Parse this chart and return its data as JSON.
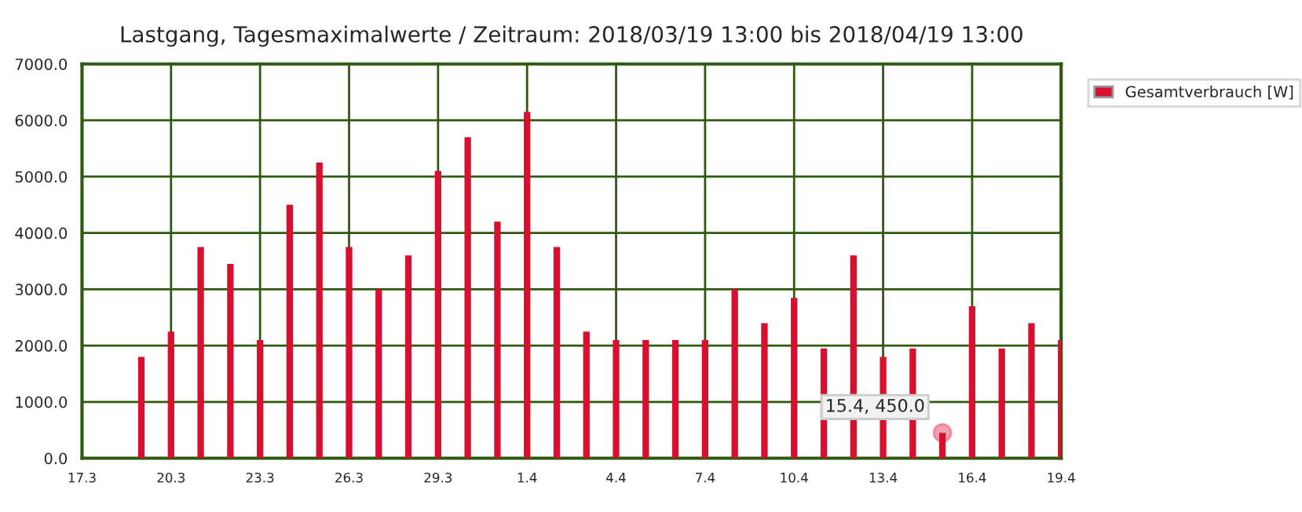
{
  "chart_data": {
    "type": "bar",
    "title": "Lastgang, Tagesmaximalwerte / Zeitraum: 2018/03/19 13:00 bis 2018/04/19 13:00",
    "x": [
      "2018-03-19",
      "2018-03-20",
      "2018-03-21",
      "2018-03-22",
      "2018-03-23",
      "2018-03-24",
      "2018-03-25",
      "2018-03-26",
      "2018-03-27",
      "2018-03-28",
      "2018-03-29",
      "2018-03-30",
      "2018-03-31",
      "2018-04-01",
      "2018-04-02",
      "2018-04-03",
      "2018-04-04",
      "2018-04-05",
      "2018-04-06",
      "2018-04-07",
      "2018-04-08",
      "2018-04-09",
      "2018-04-10",
      "2018-04-11",
      "2018-04-12",
      "2018-04-13",
      "2018-04-14",
      "2018-04-15",
      "2018-04-16",
      "2018-04-17",
      "2018-04-18",
      "2018-04-19"
    ],
    "series": [
      {
        "name": "Gesamtverbrauch [W]",
        "color": "#d7102f",
        "values": [
          1800,
          2250,
          3750,
          3450,
          2100,
          4500,
          5250,
          3750,
          3000,
          3600,
          5100,
          5700,
          4200,
          6150,
          3750,
          2250,
          2100,
          2100,
          2100,
          2100,
          3000,
          2400,
          2850,
          1950,
          3600,
          1800,
          1950,
          450,
          2700,
          1950,
          2400,
          2100
        ]
      }
    ],
    "xlim": [
      "2018-03-17",
      "2018-04-19"
    ],
    "xticks": [
      {
        "value": "2018-03-17",
        "label": "17.3"
      },
      {
        "value": "2018-03-20",
        "label": "20.3"
      },
      {
        "value": "2018-03-23",
        "label": "23.3"
      },
      {
        "value": "2018-03-26",
        "label": "26.3"
      },
      {
        "value": "2018-03-29",
        "label": "29.3"
      },
      {
        "value": "2018-04-01",
        "label": "1.4"
      },
      {
        "value": "2018-04-04",
        "label": "4.4"
      },
      {
        "value": "2018-04-07",
        "label": "7.4"
      },
      {
        "value": "2018-04-10",
        "label": "10.4"
      },
      {
        "value": "2018-04-13",
        "label": "13.4"
      },
      {
        "value": "2018-04-16",
        "label": "16.4"
      },
      {
        "value": "2018-04-19",
        "label": "19.4"
      }
    ],
    "ylim": [
      0,
      7000
    ],
    "yticks": [
      {
        "value": 0,
        "label": "0.0"
      },
      {
        "value": 1000,
        "label": "1000.0"
      },
      {
        "value": 2000,
        "label": "2000.0"
      },
      {
        "value": 3000,
        "label": "3000.0"
      },
      {
        "value": 4000,
        "label": "4000.0"
      },
      {
        "value": 5000,
        "label": "5000.0"
      },
      {
        "value": 6000,
        "label": "6000.0"
      },
      {
        "value": 7000,
        "label": "7000.0"
      }
    ],
    "grid": true,
    "legend": "top right",
    "annotations": [
      {
        "text": "15.4, 450.0",
        "x": "2018-04-15",
        "y": 450
      }
    ]
  }
}
